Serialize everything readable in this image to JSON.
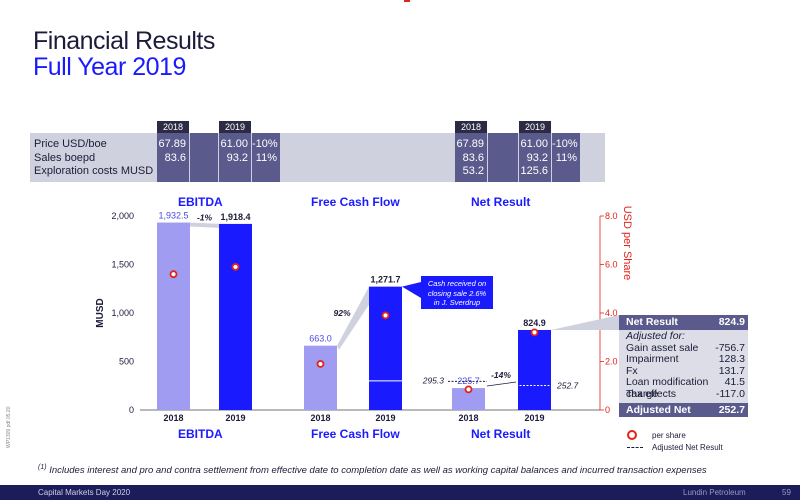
{
  "header": {
    "title": "Financial Results",
    "subtitle": "Full Year 2019"
  },
  "info_table": {
    "labels": [
      "Price USD/boe",
      "Sales boepd",
      "Exploration costs MUSD"
    ],
    "years": [
      "2018",
      "2019",
      "2018",
      "2019"
    ],
    "col_2018_a": [
      "67.89",
      "83.6",
      ""
    ],
    "col_2019_a": [
      "61.00",
      "93.2",
      ""
    ],
    "change_a": [
      "-10%",
      "11%",
      ""
    ],
    "col_2018_b": [
      "67.89",
      "83.6",
      "53.2"
    ],
    "col_2019_b": [
      "61.00",
      "93.2",
      "125.6"
    ],
    "change_b": [
      "-10%",
      "11%",
      ""
    ]
  },
  "sections": {
    "ebitda": "EBITDA",
    "fcf": "Free Cash Flow",
    "net": "Net Result"
  },
  "callout": {
    "text1": "Cash received on",
    "text2": "closing sale 2.6%",
    "text3": "in J. Sverdrup"
  },
  "net_result_box": {
    "head_label": "Net Result",
    "head_value": "824.9",
    "adjusted_for": "Adjusted for:",
    "items": [
      {
        "label": "Gain asset sale",
        "value": "-756.7"
      },
      {
        "label": "Impairment",
        "value": "128.3"
      },
      {
        "label": "Fx",
        "value": "131.7"
      },
      {
        "label": "Loan modification charge",
        "value": "41.5"
      },
      {
        "label": "Tax effects",
        "value": "-117.0"
      }
    ],
    "adj_label": "Adjusted Net Result",
    "adj_value": "252.7"
  },
  "legend": {
    "per_share": "per share",
    "adjusted": "Adjusted Net Result"
  },
  "footnote": {
    "marker": "(1)",
    "text": " Includes interest and pro and contra settlement from effective date to completion date as well as working capital balances and incurred transaction expenses"
  },
  "footer": {
    "left": "Capital Markets Day 2020",
    "company": "Lundin Petroleum",
    "page": "59"
  },
  "side_code": "WP1309 pdf 05.20",
  "chart_data": {
    "type": "bar",
    "ylabel": "MUSD",
    "y2label": "USD per Share",
    "ylim": [
      0,
      2000
    ],
    "y2lim": [
      0,
      8
    ],
    "yticks": [
      "0",
      "500",
      "1,000",
      "1,500",
      "2,000"
    ],
    "y2ticks": [
      "0",
      "2.0",
      "4.0",
      "6.0",
      "8.0"
    ],
    "categories": [
      "2018",
      "2019",
      "2018",
      "2019",
      "2018",
      "2019"
    ],
    "groups": [
      "EBITDA",
      "Free Cash Flow",
      "Net Result"
    ],
    "values": [
      1932.5,
      1918.4,
      663.0,
      1271.7,
      225.7,
      824.9
    ],
    "value_labels": [
      "1,932.5",
      "1,918.4",
      "663.0",
      "1,271.7",
      "225.7",
      "824.9"
    ],
    "fcf_split_2019": 300,
    "per_share": [
      5.6,
      5.9,
      1.9,
      3.9,
      0.85,
      3.2
    ],
    "adjusted_net_result": [
      295.3,
      252.7
    ],
    "adjusted_labels": [
      "295.3",
      "252.7"
    ],
    "changes": [
      "-1%",
      "92%",
      "-14%"
    ],
    "colors": {
      "y2018": "#9f9cf2",
      "y2019": "#1a1aff",
      "dot": "#e2231a"
    }
  }
}
